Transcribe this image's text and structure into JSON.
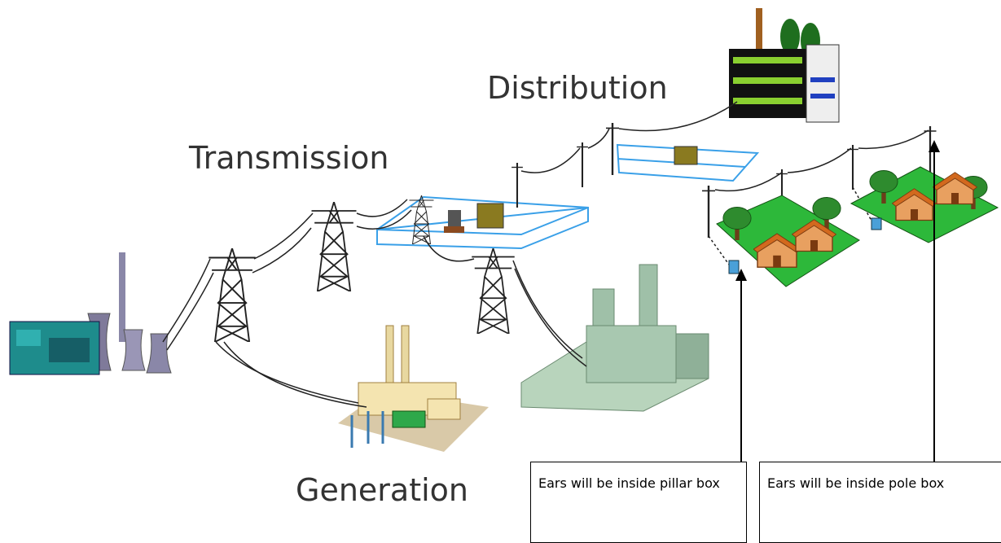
{
  "labels": {
    "distribution": "Distribution",
    "transmission": "Transmission",
    "generation": "Generation"
  },
  "callouts": [
    {
      "text": "Ears will be inside pillar box"
    },
    {
      "text": "Ears will be inside pole box"
    }
  ]
}
